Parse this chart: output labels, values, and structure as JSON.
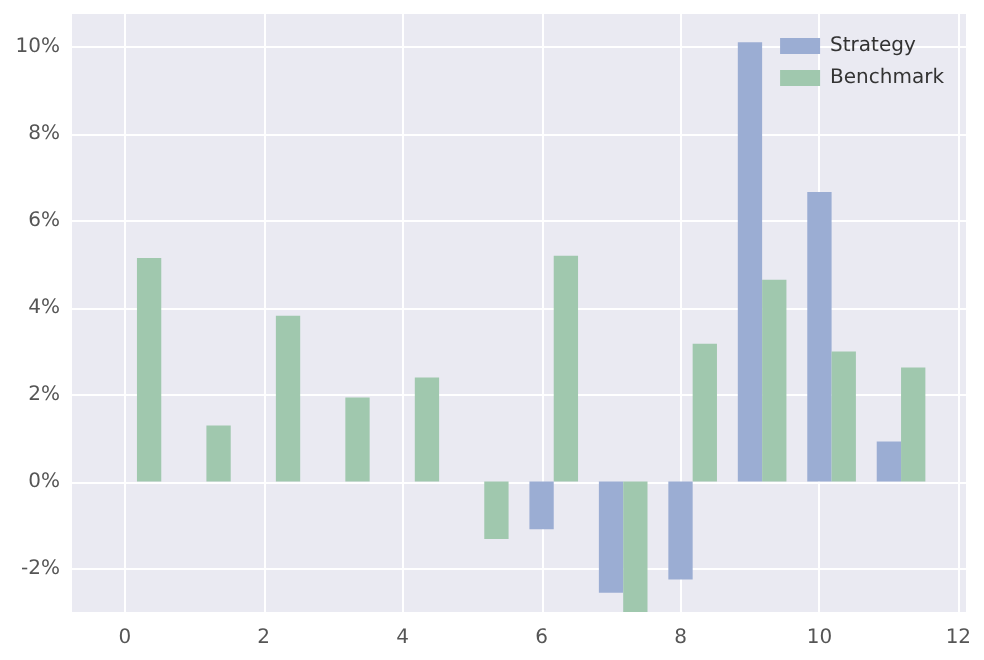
{
  "chart_data": {
    "type": "bar",
    "series": [
      {
        "name": "Strategy",
        "color": "#9badd3",
        "x": [
          6,
          7,
          8,
          9,
          10,
          11
        ],
        "values": [
          -1.1,
          -2.56,
          -2.25,
          10.1,
          6.66,
          0.92
        ]
      },
      {
        "name": "Benchmark",
        "color": "#a0c8ae",
        "x": [
          0.35,
          1.35,
          2.35,
          3.35,
          4.35,
          5.35,
          6.35,
          7.35,
          8.35,
          9.35,
          10.35,
          11.35
        ],
        "values": [
          5.14,
          1.29,
          3.81,
          1.93,
          2.39,
          -1.32,
          5.19,
          -3,
          3.17,
          4.64,
          2.99,
          2.62
        ]
      }
    ],
    "xlim": [
      -0.76,
      12.11
    ],
    "xticks": [
      0,
      2,
      4,
      6,
      8,
      10,
      12
    ],
    "ylim": [
      -3,
      10.75
    ],
    "yticks": [
      {
        "value": -2,
        "label": "-2%"
      },
      {
        "value": 0,
        "label": "0%"
      },
      {
        "value": 2,
        "label": "2%"
      },
      {
        "value": 4,
        "label": "4%"
      },
      {
        "value": 6,
        "label": "6%"
      },
      {
        "value": 8,
        "label": "8%"
      },
      {
        "value": 10,
        "label": "10%"
      }
    ],
    "grid": true,
    "legend": "top right"
  }
}
